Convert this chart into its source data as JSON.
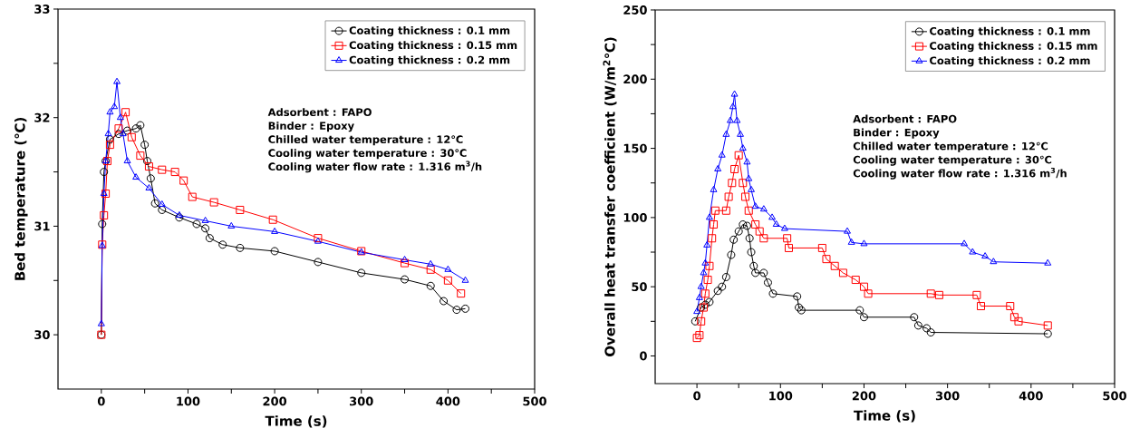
{
  "chart_data": [
    {
      "type": "line",
      "xlabel": "Time (s)",
      "ylabel": "Bed temperature (℃)",
      "xlim": [
        -50,
        500
      ],
      "ylim": [
        29.5,
        33
      ],
      "xticks": [
        0,
        {
          "value": 50,
          "label": null
        },
        100,
        {
          "value": 150,
          "label": null
        },
        200,
        {
          "value": 250,
          "label": null
        },
        300,
        {
          "value": 350,
          "label": null
        },
        400,
        {
          "value": 450,
          "label": null
        },
        500
      ],
      "yticks": [
        30,
        {
          "value": 30.5,
          "label": null
        },
        31,
        {
          "value": 31.5,
          "label": null
        },
        32,
        {
          "value": 32.5,
          "label": null
        },
        33
      ],
      "legend": "top right",
      "grid": false,
      "line_style": "solid",
      "annotations": [
        "Adsorbent : FAPO",
        "Binder : Epoxy",
        "Chilled water temperature : 12℃",
        "Cooling water temperature : 30℃",
        "Cooling water flow rate : 1.316 m$^{3}$/h"
      ],
      "series": [
        {
          "name": "Coating thickness : 0.1 mm",
          "color": "#000000",
          "marker": "circle",
          "x": [
            0,
            1,
            3,
            5,
            10,
            20,
            30,
            40,
            45,
            50,
            53,
            57,
            62,
            70,
            90,
            110,
            120,
            125,
            140,
            160,
            200,
            250,
            300,
            350,
            380,
            395,
            410,
            420
          ],
          "values": [
            30.0,
            31.02,
            31.5,
            31.6,
            31.8,
            31.85,
            31.88,
            31.9,
            31.93,
            31.75,
            31.6,
            31.44,
            31.21,
            31.15,
            31.08,
            31.02,
            30.98,
            30.89,
            30.83,
            30.8,
            30.77,
            30.67,
            30.57,
            30.51,
            30.45,
            30.31,
            30.23,
            30.24
          ]
        },
        {
          "name": "Coating thickness : 0.15 mm",
          "color": "#ff0000",
          "marker": "square",
          "x": [
            0,
            1,
            3,
            5,
            7,
            10,
            20,
            28,
            35,
            45,
            55,
            70,
            85,
            95,
            105,
            130,
            160,
            198,
            250,
            300,
            350,
            380,
            400,
            415
          ],
          "values": [
            30.0,
            30.83,
            31.1,
            31.3,
            31.6,
            31.75,
            31.9,
            32.05,
            31.82,
            31.65,
            31.55,
            31.52,
            31.5,
            31.42,
            31.27,
            31.22,
            31.15,
            31.06,
            30.89,
            30.77,
            30.66,
            30.6,
            30.5,
            30.38
          ]
        },
        {
          "name": "Coating thickness : 0.2 mm",
          "color": "#0000ff",
          "marker": "triangle",
          "x": [
            0,
            1,
            3,
            5,
            8,
            10,
            15,
            18,
            22,
            25,
            30,
            40,
            55,
            70,
            90,
            120,
            150,
            200,
            250,
            300,
            350,
            380,
            400,
            420
          ],
          "values": [
            30.1,
            30.82,
            31.3,
            31.6,
            31.85,
            32.05,
            32.1,
            32.33,
            32.0,
            31.85,
            31.6,
            31.45,
            31.35,
            31.2,
            31.1,
            31.05,
            31.0,
            30.95,
            30.86,
            30.76,
            30.69,
            30.65,
            30.6,
            30.5
          ]
        }
      ]
    },
    {
      "type": "line",
      "xlabel": "Time (s)",
      "ylabel": "Overall heat transfer coefficient (W/m$^{2}$℃)",
      "xlim": [
        -50,
        500
      ],
      "ylim": [
        -20,
        250
      ],
      "xticks": [
        0,
        {
          "value": 50,
          "label": null
        },
        100,
        {
          "value": 150,
          "label": null
        },
        200,
        {
          "value": 250,
          "label": null
        },
        300,
        {
          "value": 350,
          "label": null
        },
        400,
        {
          "value": 450,
          "label": null
        },
        500
      ],
      "yticks": [
        0,
        {
          "value": 25,
          "label": null
        },
        50,
        {
          "value": 75,
          "label": null
        },
        100,
        {
          "value": 125,
          "label": null
        },
        150,
        {
          "value": 175,
          "label": null
        },
        200,
        {
          "value": 225,
          "label": null
        },
        250
      ],
      "legend": "top right",
      "grid": false,
      "line_style": "solid",
      "annotations": [
        "Adsorbent : FAPO",
        "Binder : Epoxy",
        "Chilled water temperature : 12℃",
        "Cooling water temperature : 30℃",
        "Cooling water flow rate : 1.316 m$^{3}$/h"
      ],
      "series": [
        {
          "name": "Coating thickness : 0.1 mm",
          "color": "#000000",
          "marker": "circle",
          "x": [
            -2,
            5,
            10,
            15,
            25,
            30,
            35,
            41,
            44,
            50,
            55,
            60,
            63,
            65,
            68,
            70,
            80,
            85,
            91,
            120,
            122,
            125,
            195,
            200,
            260,
            265,
            275,
            280,
            420
          ],
          "values": [
            25,
            35,
            37,
            39,
            47,
            50,
            57,
            73,
            84,
            90,
            95,
            94,
            85,
            75,
            65,
            60,
            60,
            53,
            45,
            43,
            35,
            33,
            33,
            28,
            28,
            22,
            20,
            17,
            16
          ]
        },
        {
          "name": "Coating thickness : 0.15 mm",
          "color": "#ff0000",
          "marker": "square",
          "x": [
            0,
            3,
            5,
            8,
            10,
            13,
            15,
            18,
            20,
            22,
            35,
            38,
            42,
            45,
            50,
            55,
            58,
            62,
            70,
            75,
            80,
            108,
            110,
            150,
            155,
            165,
            175,
            190,
            200,
            205,
            280,
            290,
            335,
            340,
            375,
            380,
            385,
            420
          ],
          "values": [
            13,
            15,
            25,
            35,
            45,
            55,
            65,
            85,
            95,
            105,
            105,
            115,
            125,
            135,
            145,
            125,
            115,
            105,
            95,
            90,
            85,
            85,
            78,
            78,
            70,
            65,
            60,
            55,
            50,
            45,
            45,
            44,
            44,
            36,
            36,
            28,
            25,
            22
          ]
        },
        {
          "name": "Coating thickness : 0.2 mm",
          "color": "#0000ff",
          "marker": "triangle",
          "x": [
            0,
            3,
            5,
            8,
            10,
            12,
            15,
            20,
            25,
            30,
            35,
            40,
            43,
            45,
            48,
            52,
            55,
            60,
            62,
            65,
            70,
            80,
            90,
            95,
            105,
            180,
            185,
            200,
            320,
            330,
            345,
            355,
            420
          ],
          "values": [
            32,
            42,
            50,
            60,
            67,
            80,
            100,
            120,
            135,
            145,
            160,
            170,
            180,
            189,
            170,
            160,
            150,
            140,
            128,
            120,
            108,
            106,
            100,
            95,
            92,
            90,
            82,
            81,
            81,
            75,
            72,
            68,
            67
          ]
        }
      ]
    }
  ]
}
